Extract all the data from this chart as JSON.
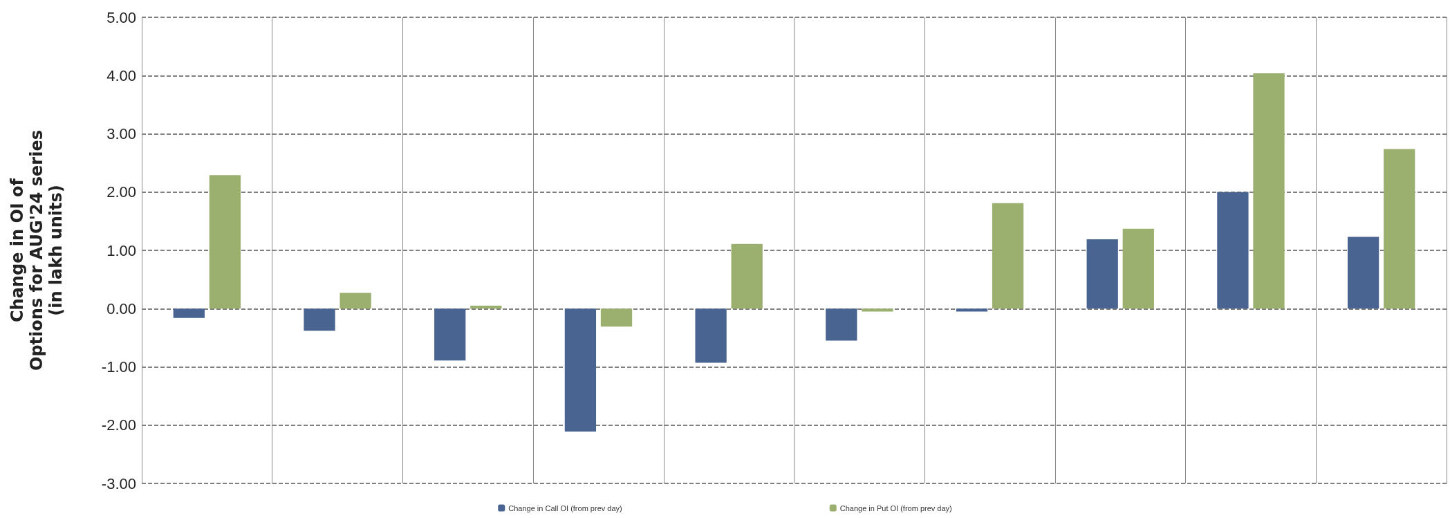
{
  "chart_data": {
    "type": "bar",
    "ylabel": "Change in OI of\nOptions for AUG'24 series\n(in lakh units)",
    "categories": [
      null,
      null,
      null,
      null,
      null,
      null,
      null,
      null,
      null,
      null
    ],
    "series": [
      {
        "name": "Change in Call OI (from prev day)",
        "color": "#4a6491",
        "values": [
          -0.16,
          -0.38,
          -0.89,
          -2.11,
          -0.93,
          -0.55,
          -0.05,
          1.19,
          2.0,
          1.23
        ]
      },
      {
        "name": "Change in Put OI (from prev day)",
        "color": "#9bb06e",
        "values": [
          2.29,
          0.27,
          0.05,
          -0.31,
          1.11,
          -0.05,
          1.81,
          1.37,
          4.04,
          2.74
        ]
      }
    ],
    "ylim": [
      -3,
      5
    ],
    "yticks": [
      {
        "value": -3,
        "label": "-3.00"
      },
      {
        "value": -2,
        "label": "-2.00"
      },
      {
        "value": -1,
        "label": "-1.00"
      },
      {
        "value": 0,
        "label": "0.00"
      },
      {
        "value": 1,
        "label": "1.00"
      },
      {
        "value": 2,
        "label": "2.00"
      },
      {
        "value": 3,
        "label": "3.00"
      },
      {
        "value": 4,
        "label": "4.00"
      },
      {
        "value": 5,
        "label": "5.00"
      }
    ],
    "grid": true,
    "legend": "bottom"
  }
}
